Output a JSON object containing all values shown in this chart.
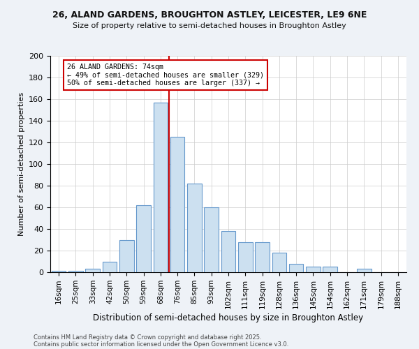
{
  "title_line1": "26, ALAND GARDENS, BROUGHTON ASTLEY, LEICESTER, LE9 6NE",
  "title_line2": "Size of property relative to semi-detached houses in Broughton Astley",
  "xlabel": "Distribution of semi-detached houses by size in Broughton Astley",
  "ylabel": "Number of semi-detached properties",
  "categories": [
    "16sqm",
    "25sqm",
    "33sqm",
    "42sqm",
    "50sqm",
    "59sqm",
    "68sqm",
    "76sqm",
    "85sqm",
    "93sqm",
    "102sqm",
    "111sqm",
    "119sqm",
    "128sqm",
    "136sqm",
    "145sqm",
    "154sqm",
    "162sqm",
    "171sqm",
    "179sqm",
    "188sqm"
  ],
  "values": [
    1,
    1,
    3,
    10,
    30,
    62,
    157,
    125,
    82,
    60,
    38,
    28,
    28,
    18,
    8,
    5,
    5,
    0,
    3,
    0,
    0
  ],
  "bar_color": "#cce0f0",
  "bar_edge_color": "#6699cc",
  "property_label": "26 ALAND GARDENS: 74sqm",
  "annotation_line1": "← 49% of semi-detached houses are smaller (329)",
  "annotation_line2": "50% of semi-detached houses are larger (337) →",
  "vline_color": "#cc0000",
  "box_edge_color": "#cc0000",
  "vline_x_index": 7,
  "ylim": [
    0,
    200
  ],
  "yticks": [
    0,
    20,
    40,
    60,
    80,
    100,
    120,
    140,
    160,
    180,
    200
  ],
  "footnote_line1": "Contains HM Land Registry data © Crown copyright and database right 2025.",
  "footnote_line2": "Contains public sector information licensed under the Open Government Licence v3.0.",
  "background_color": "#eef2f7",
  "plot_background": "#ffffff"
}
